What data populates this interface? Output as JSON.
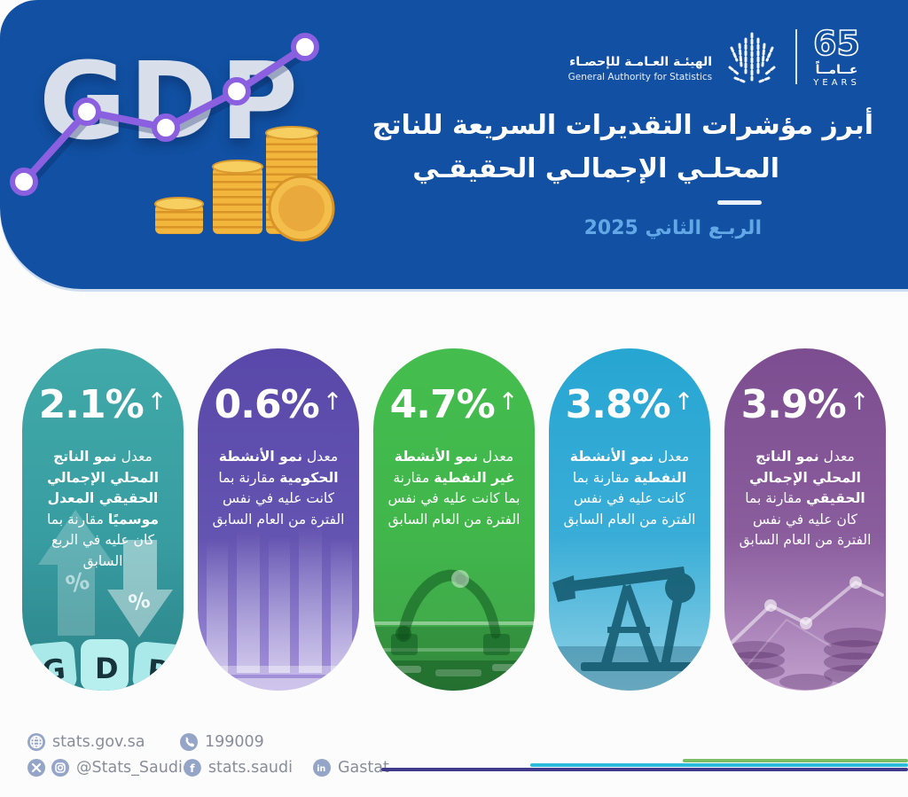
{
  "chart_data": {
    "type": "table",
    "title": "أبرز مؤشرات التقديرات السريعة للناتج المحلي الإجمالي الحقيقي",
    "subtitle": "الربـع الثاني 2025",
    "unit": "%",
    "categories": [
      "الناتج المحلي الإجمالي الحقيقي المعدل موسميًا مقارنة بالربع السابق",
      "الأنشطة الحكومية مقارنة بنفس الفترة من العام السابق",
      "الأنشطة غير النفطية مقارنة بنفس الفترة من العام السابق",
      "الأنشطة النفطية مقارنة بنفس الفترة من العام السابق",
      "الناتج المحلي الإجمالي الحقيقي مقارنة بنفس الفترة من العام السابق"
    ],
    "values": [
      2.1,
      0.6,
      4.7,
      3.8,
      3.9
    ],
    "direction": [
      "up",
      "up",
      "up",
      "up",
      "up"
    ]
  },
  "header": {
    "bg_color": "#1150a2",
    "gdp_watermark": "GDP",
    "title_line1": "أبرز مؤشرات التقديرات السريعة للناتج",
    "title_line2": "المحلـي الإجمالـي الحقيقـي",
    "period": "الربـع الثاني 2025",
    "period_color": "#63a7e6",
    "logo": {
      "name_ar": "الهيئـة العـامـة للإحصـاء",
      "name_en": "General Authority for Statistics",
      "anniversary_number": "65",
      "anniversary_ar": "عــامــاً",
      "anniversary_en": "YEARS"
    }
  },
  "cards": [
    {
      "value": "2.1%",
      "arrow": "↑",
      "color_top": "#41a9a9",
      "color_mid": "#389da1",
      "color_bottom": "#2b8389",
      "keys": [
        "G",
        "D",
        "P"
      ],
      "segments": [
        {
          "t": "معدل ",
          "b": false
        },
        {
          "t": "نمو الناتج المحلي الإجمالي الحقيقي المعدل موسميًا",
          "b": true
        },
        {
          "t": " مقارنة بما كان عليه في الربع السابق",
          "b": false
        }
      ]
    },
    {
      "value": "0.6%",
      "arrow": "↑",
      "color_top": "#5948a9",
      "color_mid": "#6454b1",
      "color_bottom": "#a795dc",
      "segments": [
        {
          "t": "معدل ",
          "b": false
        },
        {
          "t": "نمو الأنشطة الحكومية",
          "b": true
        },
        {
          "t": " مقارنة بما كانت عليه في نفس الفترة من العام السابق",
          "b": false
        }
      ]
    },
    {
      "value": "4.7%",
      "arrow": "↑",
      "color_top": "#44bd4e",
      "color_mid": "#41b64b",
      "color_bottom": "#3fa249",
      "segments": [
        {
          "t": "معدل ",
          "b": false
        },
        {
          "t": "نمو الأنشطة غير النفطية",
          "b": true
        },
        {
          "t": " مقارنة بما كانت عليه في نفس الفترة من العام السابق",
          "b": false
        }
      ]
    },
    {
      "value": "3.8%",
      "arrow": "↑",
      "color_top": "#27a6d2",
      "color_mid": "#39add7",
      "color_bottom": "#8fd2e6",
      "segments": [
        {
          "t": "معدل ",
          "b": false
        },
        {
          "t": "نمو الأنشطة النفطية",
          "b": true
        },
        {
          "t": " مقارنة بما كانت عليه في نفس الفترة من العام السابق",
          "b": false
        }
      ]
    },
    {
      "value": "3.9%",
      "arrow": "↑",
      "color_top": "#7c4d90",
      "color_mid": "#8a5d9d",
      "color_bottom": "#c2a0ce",
      "segments": [
        {
          "t": "معدل ",
          "b": false
        },
        {
          "t": "نمو الناتج المحلي الإجمالي الحقيقي",
          "b": true
        },
        {
          "t": " مقارنة بما كان عليه في نفس الفترة من العام السابق",
          "b": false
        }
      ]
    }
  ],
  "footer": {
    "website": "stats.gov.sa",
    "phone": "199009",
    "social_handle": "@Stats_Saudi",
    "facebook_handle": "stats.saudi",
    "linkedin_handle": "Gastat",
    "icons": {
      "website": "globe-icon",
      "phone": "phone-icon",
      "handle": [
        "x-twitter-icon",
        "instagram-icon"
      ],
      "facebook": "facebook-icon",
      "linkedin": "linkedin-icon"
    },
    "icon_color": "#94a5c8",
    "lines": [
      {
        "color": "#7cbe66"
      },
      {
        "color": "#2bbbdd"
      },
      {
        "color": "#3f3a8c"
      }
    ]
  }
}
